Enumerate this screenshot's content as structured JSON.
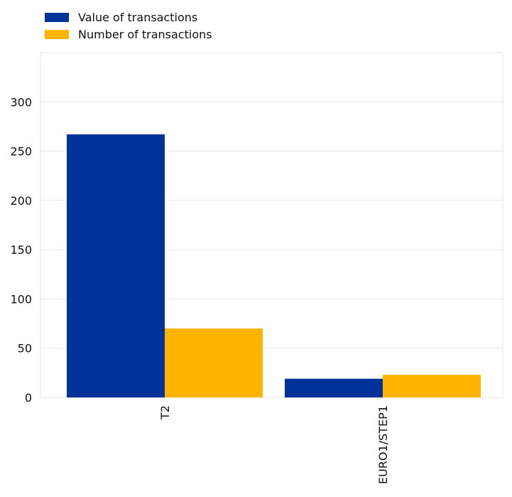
{
  "chart_data": {
    "type": "bar",
    "title": "",
    "xlabel": "",
    "ylabel": "",
    "categories": [
      "T2",
      "EURO1/STEP1"
    ],
    "series": [
      {
        "name": "Value of transactions",
        "color": "#003299",
        "values": [
          267,
          19
        ]
      },
      {
        "name": "Number of transactions",
        "color": "#FFB400",
        "values": [
          70,
          23
        ]
      }
    ],
    "ylim": [
      0,
      350
    ],
    "yticks": [
      0,
      50,
      100,
      150,
      200,
      250,
      300
    ],
    "grid": true,
    "legend_position": "top-left"
  }
}
